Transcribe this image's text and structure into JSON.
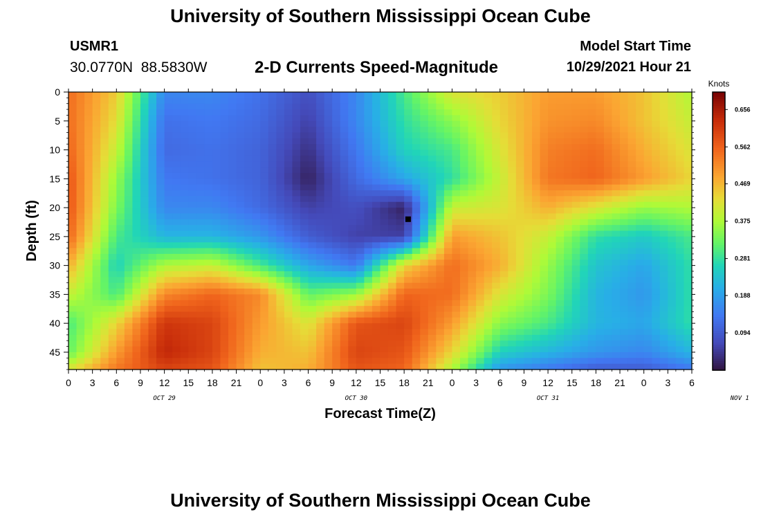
{
  "header": {
    "main_title": "University of Southern Mississippi Ocean Cube",
    "station_id": "USMR1",
    "station_coords": "30.0770N  88.5830W",
    "chart_title": "2-D Currents Speed-Magnitude",
    "start_label": "Model Start Time",
    "start_value": "10/29/2021 Hour 21"
  },
  "footer": {
    "title": "University of Southern Mississippi Ocean Cube"
  },
  "chart_data": {
    "type": "heatmap",
    "title": "2-D Currents Speed-Magnitude",
    "xlabel": "Forecast Time(Z)",
    "ylabel": "Depth (ft)",
    "x_tick_labels": [
      "0",
      "3",
      "6",
      "9",
      "12",
      "15",
      "18",
      "21",
      "0",
      "3",
      "6",
      "9",
      "12",
      "15",
      "18",
      "21",
      "0",
      "3",
      "6",
      "9",
      "12",
      "15",
      "18",
      "21",
      "0",
      "3",
      "6"
    ],
    "x_range_hours": [
      0,
      78
    ],
    "day_labels": [
      {
        "label": "OCT 29",
        "hour": 12
      },
      {
        "label": "OCT 30",
        "hour": 36
      },
      {
        "label": "OCT 31",
        "hour": 60
      },
      {
        "label": "NOV 1",
        "hour": 84
      }
    ],
    "y_tick_values": [
      0,
      5,
      10,
      15,
      20,
      25,
      30,
      35,
      40,
      45
    ],
    "y_range": [
      0,
      48
    ],
    "y_inverted": true,
    "colorbar": {
      "unit": "Knots",
      "tick_labels": [
        "0.656",
        "0.562",
        "0.469",
        "0.375",
        "0.281",
        "0.188",
        "0.094"
      ],
      "range": [
        0.0,
        0.7
      ],
      "colormap": "turbo"
    },
    "marker": {
      "hour": 42.5,
      "depth": 22
    },
    "field": {
      "description_grid_hours": [
        0,
        6,
        12,
        18,
        24,
        30,
        36,
        42,
        48,
        54,
        60,
        66,
        72,
        78
      ],
      "description_grid_depths": [
        0,
        5,
        10,
        15,
        20,
        25,
        30,
        35,
        40,
        45,
        48
      ],
      "values": [
        [
          0.55,
          0.45,
          0.16,
          0.16,
          0.13,
          0.08,
          0.16,
          0.3,
          0.42,
          0.45,
          0.5,
          0.5,
          0.46,
          0.38
        ],
        [
          0.55,
          0.43,
          0.13,
          0.14,
          0.12,
          0.06,
          0.16,
          0.28,
          0.35,
          0.44,
          0.51,
          0.52,
          0.46,
          0.4
        ],
        [
          0.56,
          0.4,
          0.12,
          0.13,
          0.11,
          0.04,
          0.14,
          0.26,
          0.3,
          0.42,
          0.53,
          0.55,
          0.48,
          0.42
        ],
        [
          0.58,
          0.36,
          0.14,
          0.13,
          0.11,
          0.02,
          0.12,
          0.2,
          0.28,
          0.4,
          0.54,
          0.56,
          0.5,
          0.44
        ],
        [
          0.58,
          0.34,
          0.16,
          0.16,
          0.12,
          0.06,
          0.08,
          0.02,
          0.4,
          0.42,
          0.48,
          0.42,
          0.36,
          0.38
        ],
        [
          0.56,
          0.3,
          0.22,
          0.22,
          0.18,
          0.1,
          0.06,
          0.06,
          0.5,
          0.46,
          0.4,
          0.28,
          0.25,
          0.3
        ],
        [
          0.48,
          0.26,
          0.38,
          0.4,
          0.3,
          0.2,
          0.14,
          0.44,
          0.55,
          0.48,
          0.36,
          0.24,
          0.2,
          0.28
        ],
        [
          0.4,
          0.3,
          0.52,
          0.56,
          0.52,
          0.32,
          0.36,
          0.56,
          0.55,
          0.42,
          0.34,
          0.22,
          0.18,
          0.28
        ],
        [
          0.3,
          0.44,
          0.62,
          0.6,
          0.5,
          0.42,
          0.58,
          0.6,
          0.5,
          0.35,
          0.3,
          0.22,
          0.2,
          0.28
        ],
        [
          0.32,
          0.5,
          0.64,
          0.6,
          0.48,
          0.46,
          0.6,
          0.58,
          0.44,
          0.26,
          0.22,
          0.18,
          0.16,
          0.22
        ],
        [
          0.42,
          0.54,
          0.6,
          0.58,
          0.46,
          0.48,
          0.58,
          0.56,
          0.38,
          0.18,
          0.14,
          0.1,
          0.1,
          0.14
        ]
      ]
    }
  }
}
